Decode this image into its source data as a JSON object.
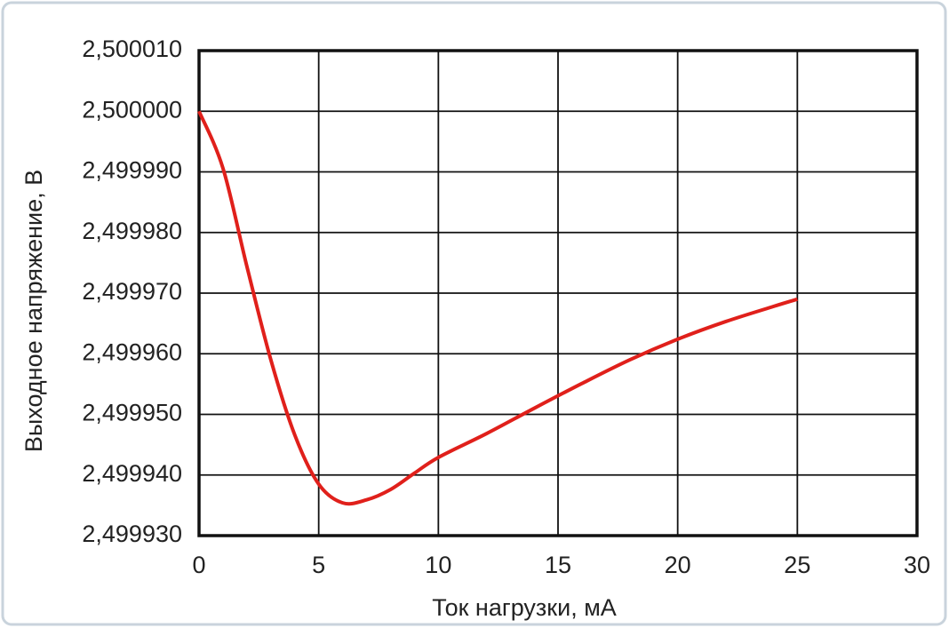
{
  "chart_data": {
    "type": "line",
    "xlabel": "Ток нагрузки, мА",
    "ylabel": "Выходное напряжение, В",
    "x": [
      0,
      1,
      2,
      3,
      4,
      5,
      6,
      7,
      8,
      9,
      10,
      12,
      14,
      16,
      18,
      20,
      22,
      24,
      25
    ],
    "series": [
      {
        "color": "#e0201b",
        "values": [
          2.5,
          2.4999906,
          2.4999744,
          2.499959,
          2.4999466,
          2.4999385,
          2.4999354,
          2.4999359,
          2.4999376,
          2.4999403,
          2.4999429,
          2.4999468,
          2.499951,
          2.4999551,
          2.499959,
          2.4999624,
          2.4999653,
          2.4999678,
          2.499969
        ]
      }
    ],
    "xlim": [
      0,
      30
    ],
    "xticks": [
      0,
      5,
      10,
      15,
      20,
      25,
      30
    ],
    "ylim": [
      2.49993,
      2.50001
    ],
    "yticks": [
      {
        "value": 2.49993,
        "label": "2,499930"
      },
      {
        "value": 2.49994,
        "label": "2,499940"
      },
      {
        "value": 2.49995,
        "label": "2,499950"
      },
      {
        "value": 2.49996,
        "label": "2,499960"
      },
      {
        "value": 2.49997,
        "label": "2,499970"
      },
      {
        "value": 2.49998,
        "label": "2,499980"
      },
      {
        "value": 2.49999,
        "label": "2,499990"
      },
      {
        "value": 2.5,
        "label": "2,500000"
      },
      {
        "value": 2.50001,
        "label": "2,500010"
      }
    ],
    "grid": true
  }
}
